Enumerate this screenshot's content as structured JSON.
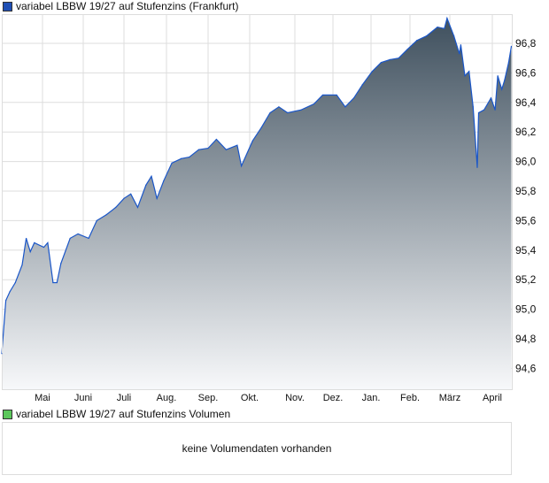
{
  "chart_data": {
    "type": "area",
    "title": "variabel LBBW 19/27 auf Stufenzins (Frankfurt)",
    "legend_color": "#1f4fb5",
    "line_color": "#1a56c8",
    "fill_gradient": [
      "#3f505e",
      "#f7f8fa"
    ],
    "grid": true,
    "ylim": [
      94.45,
      96.99
    ],
    "y_ticks": [
      "94,6",
      "94,8",
      "95,0",
      "95,2",
      "95,4",
      "95,6",
      "95,8",
      "96,0",
      "96,2",
      "96,4",
      "96,6",
      "96,8"
    ],
    "x_ticks": [
      "Mai",
      "Juni",
      "Juli",
      "Aug.",
      "Sep.",
      "Okt.",
      "Nov.",
      "Dez.",
      "Jan.",
      "Feb.",
      "März",
      "April"
    ],
    "series": [
      {
        "x": [
          "01.04.",
          "04.04.",
          "07.04.",
          "11.04.",
          "16.04.",
          "19.04.",
          "22.04.",
          "25.04.",
          "02.05.",
          "05.05.",
          "09.05.",
          "12.05.",
          "15.05.",
          "22.05.",
          "28.05.",
          "05.06.",
          "11.06.",
          "18.06.",
          "25.06.",
          "01.07.",
          "06.07.",
          "11.07.",
          "17.07.",
          "21.07.",
          "25.07.",
          "30.07.",
          "05.08.",
          "12.08.",
          "18.08.",
          "25.08.",
          "01.09.",
          "07.09.",
          "14.09.",
          "22.09.",
          "25.09.",
          "03.10.",
          "09.10.",
          "15.10.",
          "21.10.",
          "27.10.",
          "06.11.",
          "16.11.",
          "23.11.",
          "04.12.",
          "11.12.",
          "18.12.",
          "25.12.",
          "02.01.",
          "09.01.",
          "16.01.",
          "23.01.",
          "30.01.",
          "06.02.",
          "13.02.",
          "21.02.",
          "26.02.",
          "28.02.",
          "04.03.",
          "08.03.",
          "09.03.",
          "12.03.",
          "15.03.",
          "18.03.",
          "21.03.",
          "22.03.",
          "26.03.",
          "31.03.",
          "03.04.",
          "05.04.",
          "08.04.",
          "10.04.",
          "13.04.",
          "15.04."
        ],
        "values": [
          94.7,
          95.06,
          95.12,
          95.18,
          95.3,
          95.48,
          95.39,
          95.45,
          95.42,
          95.45,
          95.18,
          95.18,
          95.31,
          95.48,
          95.51,
          95.48,
          95.6,
          95.64,
          95.69,
          95.75,
          95.78,
          95.69,
          95.84,
          95.9,
          95.75,
          95.87,
          95.99,
          96.02,
          96.03,
          96.08,
          96.09,
          96.15,
          96.08,
          96.11,
          95.97,
          96.14,
          96.23,
          96.33,
          96.37,
          96.33,
          96.35,
          96.39,
          96.45,
          96.45,
          96.37,
          96.43,
          96.52,
          96.61,
          96.67,
          96.69,
          96.7,
          96.76,
          96.82,
          96.85,
          96.91,
          96.9,
          96.97,
          96.85,
          96.73,
          96.79,
          96.58,
          96.61,
          96.37,
          95.96,
          96.33,
          96.35,
          96.43,
          96.35,
          96.58,
          96.49,
          96.55,
          96.67,
          96.78
        ]
      }
    ]
  },
  "volume": {
    "title": "variabel LBBW 19/27 auf Stufenzins Volumen",
    "legend_color": "#5cc85c",
    "message": "keine Volumendaten vorhanden"
  }
}
